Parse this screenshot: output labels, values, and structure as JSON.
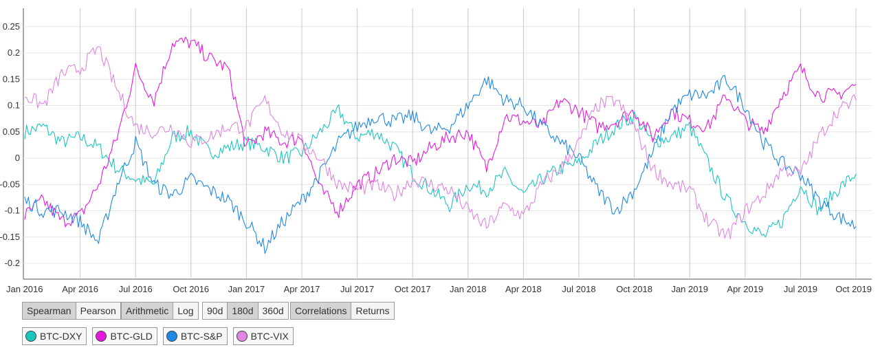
{
  "controls": {
    "method": {
      "options": [
        "Spearman",
        "Pearson"
      ],
      "selected": "Spearman"
    },
    "scale": {
      "options": [
        "Arithmetic",
        "Log"
      ],
      "selected": "Arithmetic"
    },
    "window": {
      "options": [
        "90d",
        "180d",
        "360d"
      ],
      "selected": "180d"
    },
    "view": {
      "options": [
        "Correlations",
        "Returns"
      ],
      "selected": "Correlations"
    }
  },
  "legend": [
    {
      "label": "BTC-DXY",
      "color": "#1ac6c0"
    },
    {
      "label": "BTC-GLD",
      "color": "#e619de"
    },
    {
      "label": "BTC-S&P",
      "color": "#1e88e5"
    },
    {
      "label": "BTC-VIX",
      "color": "#e085e0"
    }
  ],
  "chart_data": {
    "type": "line",
    "x_ticks": [
      "Jan 2016",
      "Apr 2016",
      "Jul 2016",
      "Oct 2016",
      "Jan 2017",
      "Apr 2017",
      "Jul 2017",
      "Oct 2017",
      "Jan 2018",
      "Apr 2018",
      "Jul 2018",
      "Oct 2018",
      "Jan 2019",
      "Apr 2019",
      "Jul 2019",
      "Oct 2019"
    ],
    "y_ticks": [
      0.25,
      0.2,
      0.15,
      0.1,
      0.05,
      0,
      -0.05,
      -0.1,
      -0.15,
      -0.2
    ],
    "y_tick_labels": [
      "0.25",
      "0.2",
      "0.15",
      "0.1",
      "0.05",
      "0",
      "-0.05",
      "-0.1",
      "-0.15",
      "-0.2"
    ],
    "ylim": [
      -0.23,
      0.285
    ],
    "grid": true,
    "x": [
      "Jan 2016",
      "Feb 2016",
      "Mar 2016",
      "Apr 2016",
      "May 2016",
      "Jun 2016",
      "Jul 2016",
      "Aug 2016",
      "Sep 2016",
      "Oct 2016",
      "Nov 2016",
      "Dec 2016",
      "Jan 2017",
      "Feb 2017",
      "Mar 2017",
      "Apr 2017",
      "May 2017",
      "Jun 2017",
      "Jul 2017",
      "Aug 2017",
      "Sep 2017",
      "Oct 2017",
      "Nov 2017",
      "Dec 2017",
      "Jan 2018",
      "Feb 2018",
      "Mar 2018",
      "Apr 2018",
      "May 2018",
      "Jun 2018",
      "Jul 2018",
      "Aug 2018",
      "Sep 2018",
      "Oct 2018",
      "Nov 2018",
      "Dec 2018",
      "Jan 2019",
      "Feb 2019",
      "Mar 2019",
      "Apr 2019",
      "May 2019",
      "Jun 2019",
      "Jul 2019",
      "Aug 2019",
      "Sep 2019",
      "Oct 2019"
    ],
    "series": [
      {
        "name": "BTC-DXY",
        "color": "#1ac6c0",
        "values": [
          0.05,
          0.06,
          0.03,
          0.04,
          0.02,
          -0.02,
          -0.04,
          -0.05,
          0.04,
          0.05,
          0.01,
          0.02,
          0.03,
          0.02,
          0.0,
          0.01,
          0.05,
          0.09,
          0.04,
          0.05,
          0.02,
          -0.03,
          -0.06,
          -0.09,
          -0.05,
          -0.06,
          -0.03,
          -0.07,
          -0.04,
          -0.02,
          -0.01,
          0.03,
          0.06,
          0.08,
          0.03,
          0.04,
          0.06,
          -0.01,
          -0.08,
          -0.12,
          -0.15,
          -0.12,
          -0.05,
          -0.1,
          -0.06,
          -0.03
        ]
      },
      {
        "name": "BTC-GLD",
        "color": "#e619de",
        "values": [
          -0.11,
          -0.08,
          -0.12,
          -0.11,
          -0.05,
          0.04,
          0.17,
          0.11,
          0.22,
          0.22,
          0.19,
          0.17,
          0.02,
          0.05,
          0.03,
          0.04,
          -0.06,
          -0.1,
          -0.05,
          -0.03,
          0.0,
          -0.01,
          0.02,
          0.04,
          0.05,
          -0.02,
          0.08,
          0.07,
          0.06,
          0.11,
          0.09,
          0.06,
          0.07,
          0.09,
          0.04,
          0.09,
          0.07,
          0.06,
          0.12,
          0.07,
          0.05,
          0.12,
          0.17,
          0.12,
          0.12,
          0.14
        ]
      },
      {
        "name": "BTC-S&P",
        "color": "#1e88e5",
        "values": [
          -0.08,
          -0.1,
          -0.1,
          -0.12,
          -0.16,
          -0.05,
          0.03,
          -0.05,
          -0.07,
          -0.04,
          -0.06,
          -0.08,
          -0.12,
          -0.17,
          -0.12,
          -0.08,
          -0.03,
          0.03,
          0.06,
          0.08,
          0.07,
          0.08,
          0.05,
          0.06,
          0.1,
          0.15,
          0.11,
          0.1,
          0.06,
          0.03,
          0.0,
          -0.06,
          -0.1,
          -0.06,
          0.01,
          0.09,
          0.12,
          0.12,
          0.15,
          0.1,
          0.03,
          -0.01,
          -0.03,
          -0.08,
          -0.11,
          -0.13
        ]
      },
      {
        "name": "BTC-VIX",
        "color": "#e085e0",
        "values": [
          0.12,
          0.1,
          0.16,
          0.17,
          0.21,
          0.13,
          0.06,
          0.05,
          0.06,
          0.03,
          0.04,
          0.06,
          0.06,
          0.11,
          0.05,
          0.03,
          0.0,
          -0.05,
          -0.06,
          -0.05,
          -0.07,
          -0.04,
          -0.05,
          -0.06,
          -0.1,
          -0.13,
          -0.09,
          -0.11,
          -0.05,
          -0.02,
          0.03,
          0.1,
          0.11,
          0.06,
          -0.02,
          -0.05,
          -0.06,
          -0.12,
          -0.15,
          -0.1,
          -0.07,
          -0.02,
          -0.03,
          0.04,
          0.09,
          0.11
        ]
      }
    ]
  }
}
